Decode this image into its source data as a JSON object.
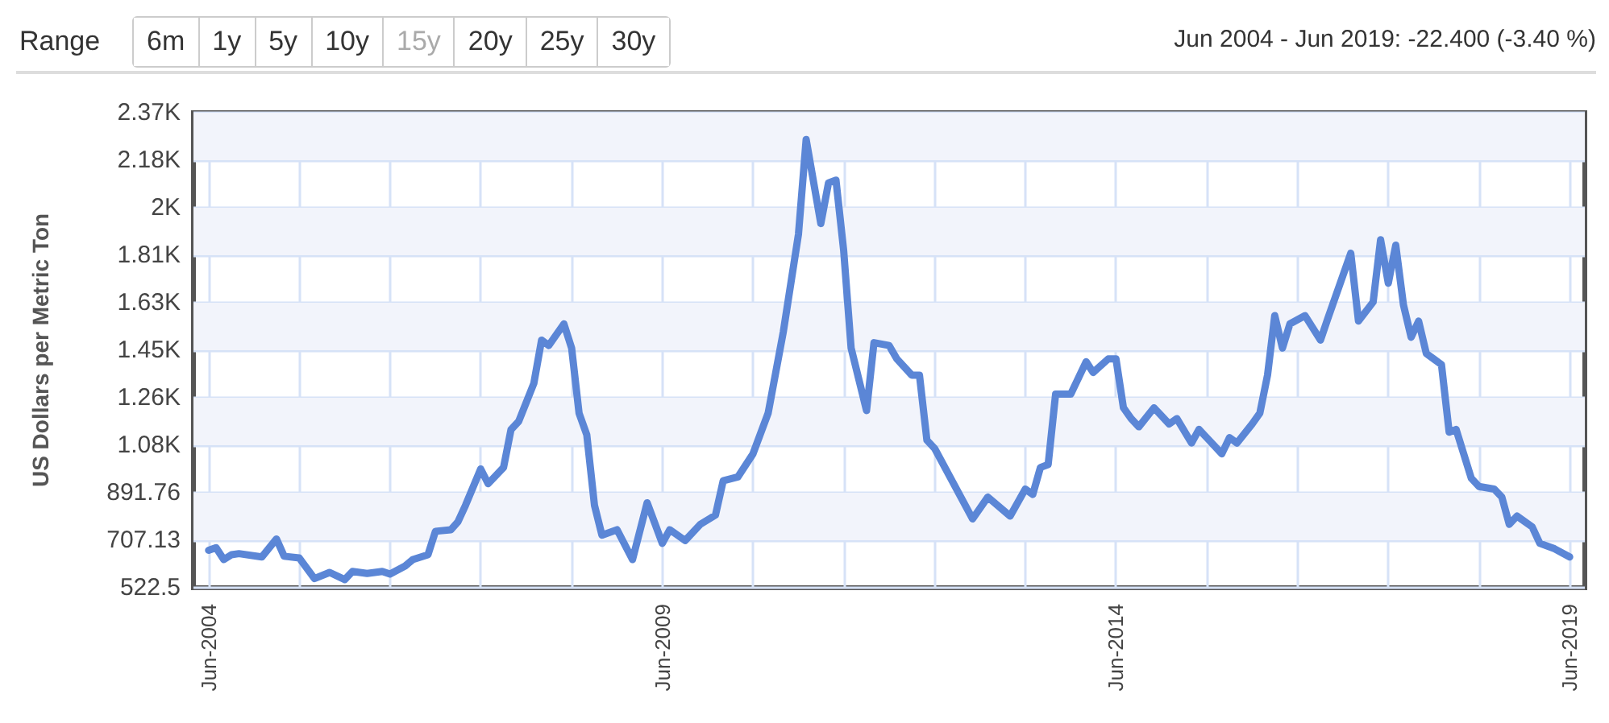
{
  "chart_data": {
    "type": "line",
    "ylabel": "US Dollars per Metric Ton",
    "annotations": [
      "Range",
      "6m",
      "1y",
      "5y",
      "10y",
      "15y",
      "20y",
      "25y",
      "30y",
      "Jun 2004 - Jun 2019: -22.400 (-3.40 %)"
    ],
    "x": [
      "2004-06",
      "2004-07",
      "2004-08",
      "2004-09",
      "2004-10",
      "2005-01",
      "2005-03",
      "2005-04",
      "2005-06",
      "2005-08",
      "2005-10",
      "2005-12",
      "2006-01",
      "2006-03",
      "2006-05",
      "2006-06",
      "2006-08",
      "2006-09",
      "2006-11",
      "2006-12",
      "2007-02",
      "2007-03",
      "2007-04",
      "2007-06",
      "2007-07",
      "2007-09",
      "2007-10",
      "2007-11",
      "2008-01",
      "2008-02",
      "2008-03",
      "2008-05",
      "2008-06",
      "2008-07",
      "2008-08",
      "2008-09",
      "2008-10",
      "2008-12",
      "2009-02",
      "2009-04",
      "2009-06",
      "2009-07",
      "2009-09",
      "2009-11",
      "2010-01",
      "2010-02",
      "2010-04",
      "2010-06",
      "2010-08",
      "2010-10",
      "2010-12",
      "2011-01",
      "2011-03",
      "2011-04",
      "2011-05",
      "2011-06",
      "2011-07",
      "2011-09",
      "2011-10",
      "2011-12",
      "2012-01",
      "2012-03",
      "2012-04",
      "2012-05",
      "2012-06",
      "2012-11",
      "2013-01",
      "2013-04",
      "2013-06",
      "2013-07",
      "2013-08",
      "2013-09",
      "2013-10",
      "2013-12",
      "2014-02",
      "2014-03",
      "2014-05",
      "2014-06",
      "2014-07",
      "2014-08",
      "2014-09",
      "2014-11",
      "2015-01",
      "2015-02",
      "2015-04",
      "2015-05",
      "2015-06",
      "2015-08",
      "2015-09",
      "2015-10",
      "2015-12",
      "2016-01",
      "2016-02",
      "2016-03",
      "2016-04",
      "2016-05",
      "2016-07",
      "2016-09",
      "2016-10",
      "2017-01",
      "2017-02",
      "2017-04",
      "2017-05",
      "2017-06",
      "2017-07",
      "2017-08",
      "2017-09",
      "2017-10",
      "2017-11",
      "2018-01",
      "2018-02",
      "2018-03",
      "2018-05",
      "2018-06",
      "2018-08",
      "2018-09",
      "2018-10",
      "2018-11",
      "2019-01",
      "2019-02",
      "2019-04",
      "2019-06"
    ],
    "series": [
      {
        "color": "#5b86d6",
        "values": [
          668,
          678,
          632,
          651,
          655,
          642,
          712,
          645,
          638,
          558,
          582,
          554,
          586,
          578,
          586,
          576,
          607,
          632,
          651,
          742,
          748,
          778,
          843,
          984,
          927,
          990,
          1137,
          1169,
          1317,
          1485,
          1464,
          1548,
          1454,
          1201,
          1117,
          843,
          727,
          748,
          632,
          853,
          695,
          748,
          706,
          769,
          805,
          938,
          953,
          1043,
          1201,
          1517,
          1896,
          2265,
          1938,
          2096,
          2107,
          1833,
          1454,
          1211,
          1475,
          1464,
          1412,
          1349,
          1349,
          1096,
          1064,
          790,
          875,
          801,
          906,
          885,
          990,
          1001,
          1275,
          1275,
          1401,
          1359,
          1412,
          1412,
          1222,
          1180,
          1148,
          1222,
          1159,
          1180,
          1085,
          1138,
          1106,
          1043,
          1106,
          1085,
          1159,
          1201,
          1349,
          1580,
          1454,
          1548,
          1580,
          1485,
          1570,
          1823,
          1559,
          1633,
          1875,
          1706,
          1854,
          1622,
          1496,
          1559,
          1433,
          1390,
          1127,
          1138,
          948,
          916,
          906,
          875,
          769,
          801,
          759,
          695,
          674,
          642
        ]
      }
    ],
    "xlim": [
      "2004-04",
      "2019-08"
    ],
    "xticks": [
      {
        "value": "2004-06",
        "label": "Jun-2004"
      },
      {
        "value": "2005-06",
        "label": null
      },
      {
        "value": "2006-06",
        "label": null
      },
      {
        "value": "2007-06",
        "label": null
      },
      {
        "value": "2008-06",
        "label": null
      },
      {
        "value": "2009-06",
        "label": "Jun-2009"
      },
      {
        "value": "2010-06",
        "label": null
      },
      {
        "value": "2011-06",
        "label": null
      },
      {
        "value": "2012-06",
        "label": null
      },
      {
        "value": "2013-06",
        "label": null
      },
      {
        "value": "2014-06",
        "label": "Jun-2014"
      },
      {
        "value": "2015-06",
        "label": null
      },
      {
        "value": "2016-06",
        "label": null
      },
      {
        "value": "2017-06",
        "label": null
      },
      {
        "value": "2018-06",
        "label": null
      },
      {
        "value": "2019-06",
        "label": "Jun-2019"
      }
    ],
    "ylim": [
      522.5,
      2368.8
    ],
    "yticks": [
      522.5,
      707.13,
      891.76,
      {
        "value": 1076.39,
        "label": "1.08K"
      },
      {
        "value": 1261.02,
        "label": "1.26K"
      },
      {
        "value": 1445.65,
        "label": "1.45K"
      },
      {
        "value": 1630.28,
        "label": "1.63K"
      },
      {
        "value": 1814.91,
        "label": "1.81K"
      },
      {
        "value": 1999.54,
        "label": "2K"
      },
      {
        "value": 2184.17,
        "label": "2.18K"
      },
      {
        "value": 2368.8,
        "label": "2.37K"
      }
    ],
    "bands": [
      {
        "axis": "y",
        "from": 707.13,
        "to": 891.76,
        "color": "#f2f4fb"
      },
      {
        "axis": "y",
        "from": 1076.39,
        "to": 1261.02,
        "color": "#f2f4fb"
      },
      {
        "axis": "y",
        "from": 1445.65,
        "to": 1630.28,
        "color": "#f2f4fb"
      },
      {
        "axis": "y",
        "from": 1814.91,
        "to": 1999.54,
        "color": "#f2f4fb"
      },
      {
        "axis": "y",
        "from": 2184.17,
        "to": 2368.8,
        "color": "#f2f4fb"
      }
    ],
    "grid": true,
    "marker": "none",
    "line_style": "solid"
  }
}
